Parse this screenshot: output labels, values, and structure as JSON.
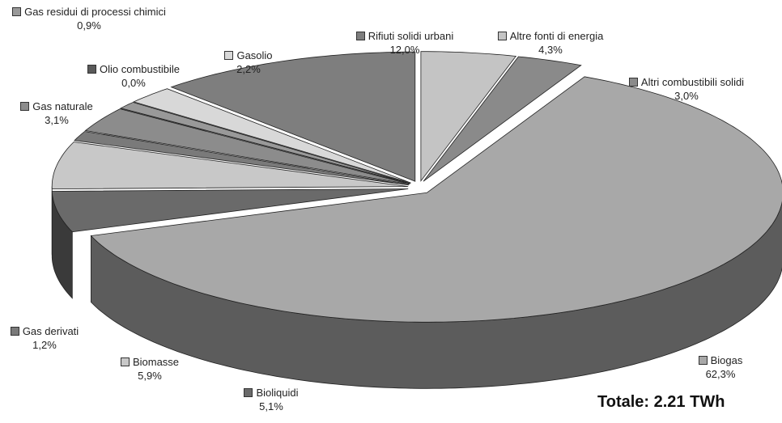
{
  "chart_data": {
    "type": "pie3d",
    "annotation": "Totale: 2.21 TWh",
    "categories": [
      "Altre fonti di energia",
      "Altri combustibili solidi",
      "Biogas",
      "Bioliquidi",
      "Biomasse",
      "Gas derivati",
      "Gas naturale",
      "Olio combustibile",
      "Gas residui di processi chimici",
      "Gasolio",
      "Rifiuti solidi urbani"
    ],
    "values": [
      4.3,
      3.0,
      62.3,
      5.1,
      5.9,
      1.2,
      3.1,
      0.0,
      0.9,
      2.2,
      12.0
    ],
    "value_labels": [
      "4,3%",
      "3,0%",
      "62,3%",
      "5,1%",
      "5,9%",
      "1,2%",
      "3,1%",
      "0,0%",
      "0,9%",
      "2,2%",
      "12,0%"
    ],
    "colors": [
      "#c4c4c4",
      "#8a8a8a",
      "#a8a8a8",
      "#6a6a6a",
      "#c8c8c8",
      "#7a7a7a",
      "#8c8c8c",
      "#5a5a5a",
      "#999999",
      "#d8d8d8",
      "#7e7e7e"
    ]
  }
}
